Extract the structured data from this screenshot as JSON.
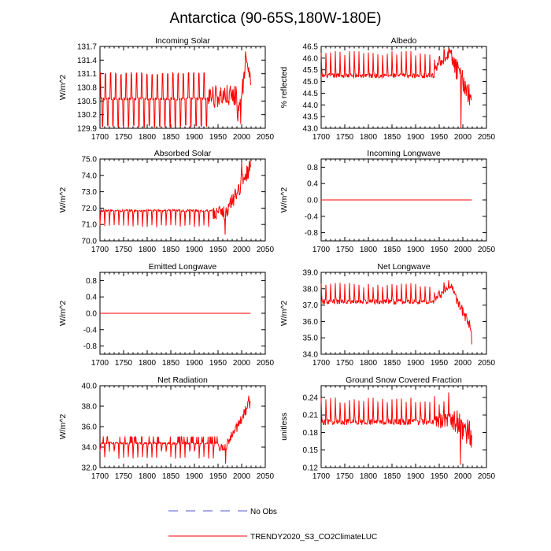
{
  "figure": {
    "title": "Antarctica (90-65S,180W-180E)",
    "line_color": "#ff0000",
    "obs_color": "#5555cc"
  },
  "legend": {
    "obs_label": "No Obs",
    "model_label": "TRENDY2020_S3_CO2ClimateLUC"
  },
  "chart_data": [
    {
      "type": "line",
      "title": "Incoming Solar",
      "xlabel": "",
      "ylabel": "W/m^2",
      "xlim": [
        1700,
        2050
      ],
      "ylim": [
        129.9,
        131.7
      ],
      "xticks": [
        "1700",
        "1750",
        "1800",
        "1850",
        "1900",
        "1950",
        "2000",
        "2050"
      ],
      "yticks": [
        "129.9",
        "130.2",
        "130.5",
        "130.8",
        "131.1",
        "131.4",
        "131.7"
      ],
      "series": [
        {
          "name": "TRENDY2020_S3_CO2ClimateLUC",
          "color": "#ff0000",
          "x_start": 1700,
          "x_end": 2019,
          "period_years": 11,
          "baseline_pre1930": 130.55,
          "cycle_low": 129.95,
          "cycle_high": 131.1,
          "late_level_1930_2000": 130.6,
          "min_near_2000": 130.0,
          "max_after_2005": 131.6,
          "end_value": 130.85
        }
      ]
    },
    {
      "type": "line",
      "title": "Albedo",
      "xlabel": "",
      "ylabel": "% reflected",
      "xlim": [
        1700,
        2050
      ],
      "ylim": [
        43.0,
        46.5
      ],
      "xticks": [
        "1700",
        "1750",
        "1800",
        "1850",
        "1900",
        "1950",
        "2000",
        "2050"
      ],
      "yticks": [
        "43.0",
        "43.5",
        "44.0",
        "44.5",
        "45.0",
        "45.5",
        "46.0",
        "46.5"
      ],
      "series": [
        {
          "name": "TRENDY2020_S3_CO2ClimateLUC",
          "color": "#ff0000",
          "x_start": 1700,
          "x_end": 2019,
          "period_years": 10,
          "baseline_pre1940": 45.25,
          "cycle_high": 46.2,
          "peak_1965_1975": 46.4,
          "decline_to_2000": 44.5,
          "min_near_1995": 43.0,
          "end_value": 44.2
        }
      ]
    },
    {
      "type": "line",
      "title": "Absorbed Solar",
      "xlabel": "",
      "ylabel": "W/m^2",
      "xlim": [
        1700,
        2050
      ],
      "ylim": [
        70.0,
        75.0
      ],
      "xticks": [
        "1700",
        "1750",
        "1800",
        "1850",
        "1900",
        "1950",
        "2000",
        "2050"
      ],
      "yticks": [
        "70.0",
        "71.0",
        "72.0",
        "73.0",
        "74.0",
        "75.0"
      ],
      "series": [
        {
          "name": "TRENDY2020_S3_CO2ClimateLUC",
          "color": "#ff0000",
          "x_start": 1700,
          "x_end": 2019,
          "period_years": 10,
          "baseline_pre1940": 71.85,
          "cycle_low": 71.0,
          "cycle_high": 72.1,
          "min_near_1965": 70.4,
          "max_near_2000": 74.8,
          "end_value": 74.5
        }
      ]
    },
    {
      "type": "line",
      "title": "Incoming Longwave",
      "xlabel": "",
      "ylabel": "W/m^2",
      "xlim": [
        1700,
        2050
      ],
      "ylim": [
        -1.0,
        1.0
      ],
      "xticks": [
        "1700",
        "1750",
        "1800",
        "1850",
        "1900",
        "1950",
        "2000",
        "2050"
      ],
      "yticks": [
        "-0.8",
        "-0.4",
        "0.0",
        "0.4",
        "0.8"
      ],
      "series": [
        {
          "name": "TRENDY2020_S3_CO2ClimateLUC",
          "color": "#ff0000",
          "x_start": 1700,
          "x_end": 2019,
          "constant_value": 0.0
        }
      ]
    },
    {
      "type": "line",
      "title": "Emitted Longwave",
      "xlabel": "",
      "ylabel": "W/m^2",
      "xlim": [
        1700,
        2050
      ],
      "ylim": [
        -1.0,
        1.0
      ],
      "xticks": [
        "1700",
        "1750",
        "1800",
        "1850",
        "1900",
        "1950",
        "2000",
        "2050"
      ],
      "yticks": [
        "-0.8",
        "-0.4",
        "0.0",
        "0.4",
        "0.8"
      ],
      "series": [
        {
          "name": "TRENDY2020_S3_CO2ClimateLUC",
          "color": "#ff0000",
          "x_start": 1700,
          "x_end": 2019,
          "constant_value": 0.0
        }
      ]
    },
    {
      "type": "line",
      "title": "Net Longwave",
      "xlabel": "",
      "ylabel": "W/m^2",
      "xlim": [
        1700,
        2050
      ],
      "ylim": [
        34.0,
        39.0
      ],
      "xticks": [
        "1700",
        "1750",
        "1800",
        "1850",
        "1900",
        "1950",
        "2000",
        "2050"
      ],
      "yticks": [
        "34.0",
        "35.0",
        "36.0",
        "37.0",
        "38.0",
        "39.0"
      ],
      "series": [
        {
          "name": "TRENDY2020_S3_CO2ClimateLUC",
          "color": "#ff0000",
          "x_start": 1700,
          "x_end": 2019,
          "period_years": 10,
          "baseline_pre1940": 37.2,
          "cycle_low": 36.9,
          "cycle_high": 38.2,
          "peak_near_1970": 38.5,
          "drop_after_1980": 36.0,
          "end_value": 34.6
        }
      ]
    },
    {
      "type": "line",
      "title": "Net Radiation",
      "xlabel": "",
      "ylabel": "W/m^2",
      "xlim": [
        1700,
        2050
      ],
      "ylim": [
        32.0,
        40.0
      ],
      "xticks": [
        "1700",
        "1750",
        "1800",
        "1850",
        "1900",
        "1950",
        "2000",
        "2050"
      ],
      "yticks": [
        "32.0",
        "34.0",
        "36.0",
        "38.0",
        "40.0"
      ],
      "series": [
        {
          "name": "TRENDY2020_S3_CO2ClimateLUC",
          "color": "#ff0000",
          "x_start": 1700,
          "x_end": 2019,
          "period_years": 10,
          "baseline_pre1950": 34.4,
          "cycle_low": 33.0,
          "cycle_high": 35.1,
          "min_near_1965": 32.4,
          "max_near_2015": 39.0,
          "end_value": 38.5
        }
      ]
    },
    {
      "type": "line",
      "title": "Ground Snow Covered Fraction",
      "xlabel": "",
      "ylabel": "unitless",
      "xlim": [
        1700,
        2050
      ],
      "ylim": [
        0.12,
        0.26
      ],
      "xticks": [
        "1700",
        "1750",
        "1800",
        "1850",
        "1900",
        "1950",
        "2000",
        "2050"
      ],
      "yticks": [
        "0.12",
        "0.15",
        "0.18",
        "0.21",
        "0.24"
      ],
      "series": [
        {
          "name": "TRENDY2020_S3_CO2ClimateLUC",
          "color": "#ff0000",
          "x_start": 1700,
          "x_end": 2019,
          "period_years": 10,
          "baseline_pre1940": 0.198,
          "cycle_high": 0.235,
          "peak_near_1970": 0.248,
          "min_near_1995": 0.125,
          "end_value": 0.175
        }
      ]
    }
  ]
}
